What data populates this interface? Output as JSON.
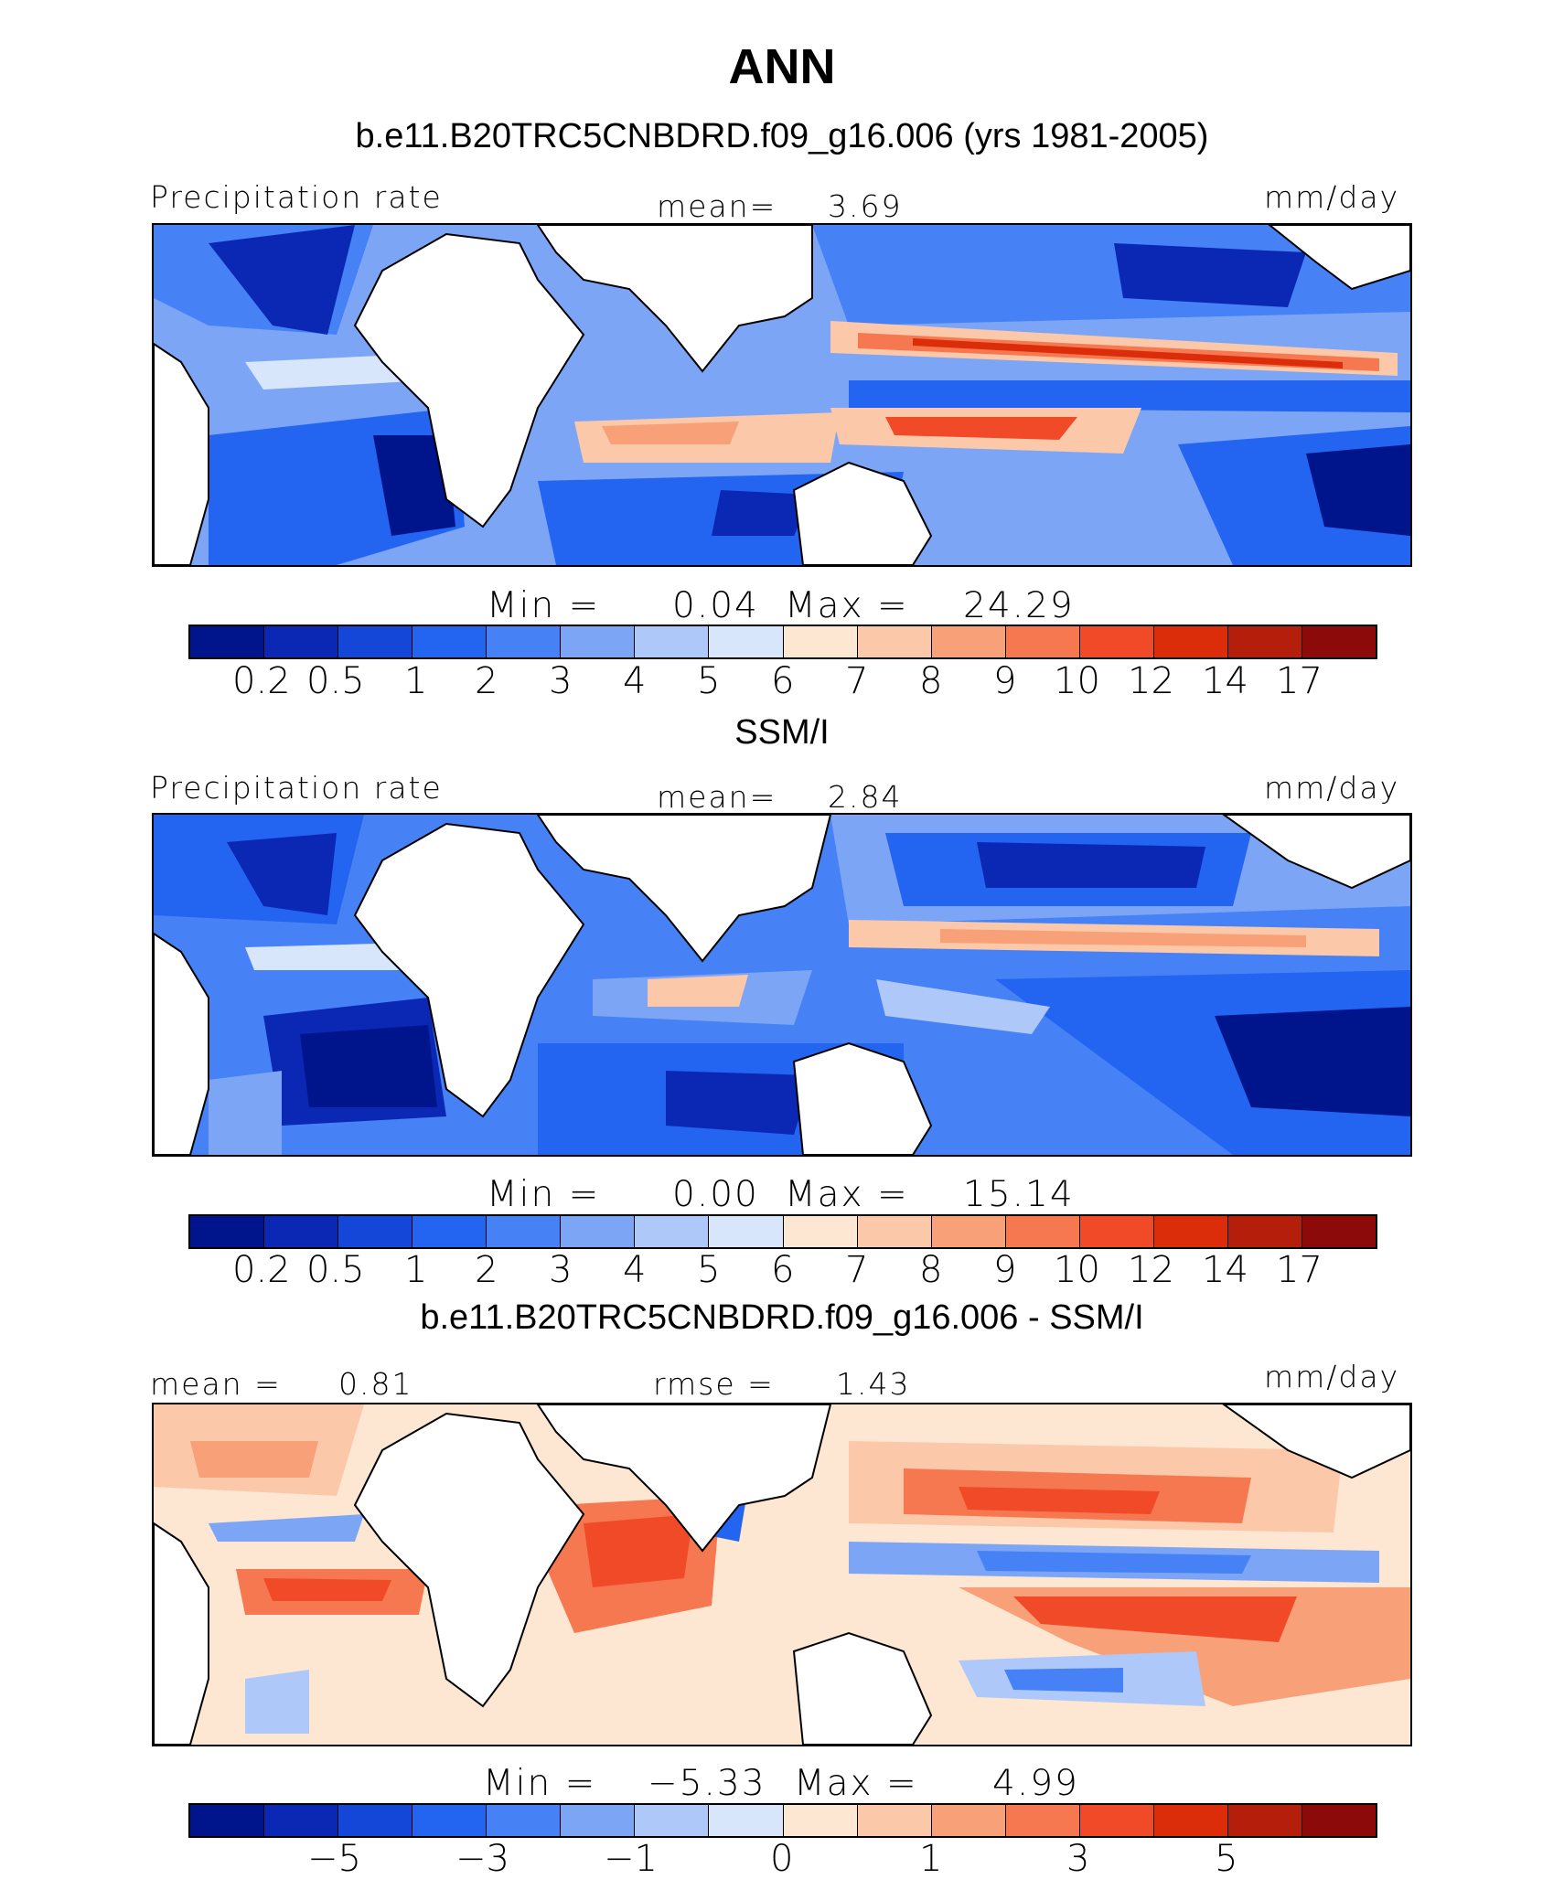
{
  "title": "ANN",
  "panels": [
    {
      "subtitle": "b.e11.B20TRC5CNBDRD.f09_g16.006 (yrs 1981-2005)",
      "left_label": "Precipitation rate",
      "center_label": "mean=",
      "center_value": "3.69",
      "right_label": "mm/day",
      "min_label": "Min =",
      "min_value": "0.04",
      "max_label": "Max =",
      "max_value": "24.29",
      "ticks": [
        "0.2",
        "0.5",
        "1",
        "2",
        "3",
        "4",
        "5",
        "6",
        "7",
        "8",
        "9",
        "10",
        "12",
        "14",
        "17"
      ]
    },
    {
      "subtitle": "SSM/I",
      "left_label": "Precipitation rate",
      "center_label": "mean=",
      "center_value": "2.84",
      "right_label": "mm/day",
      "min_label": "Min =",
      "min_value": "0.00",
      "max_label": "Max =",
      "max_value": "15.14",
      "ticks": [
        "0.2",
        "0.5",
        "1",
        "2",
        "3",
        "4",
        "5",
        "6",
        "7",
        "8",
        "9",
        "10",
        "12",
        "14",
        "17"
      ]
    },
    {
      "subtitle": "b.e11.B20TRC5CNBDRD.f09_g16.006 - SSM/I",
      "left_label": "mean =",
      "left_value": "0.81",
      "center_label": "rmse =",
      "center_value": "1.43",
      "right_label": "mm/day",
      "min_label": "Min =",
      "min_value": "−5.33",
      "max_label": "Max =",
      "max_value": "4.99",
      "ticks": [
        "−5",
        "−3",
        "−1",
        "0",
        "1",
        "3",
        "5"
      ]
    }
  ],
  "colorbar_colors": [
    "#00148c",
    "#0a28b4",
    "#1446d7",
    "#2364f0",
    "#4682f5",
    "#7da5f5",
    "#afc8fa",
    "#d7e6fa",
    "#fde6d2",
    "#fcc8aa",
    "#f8a078",
    "#f57850",
    "#f04a28",
    "#dc2d0a",
    "#b41e0a",
    "#8c0a0a"
  ],
  "ocean_colors": {
    "deep_blue": "#0a28b4",
    "mid_blue": "#2364f0",
    "light_blue": "#7da5f5",
    "pale_blue": "#afc8fa",
    "pale_red": "#fcc8aa",
    "mid_red": "#f57850",
    "deep_red": "#dc2d0a"
  }
}
